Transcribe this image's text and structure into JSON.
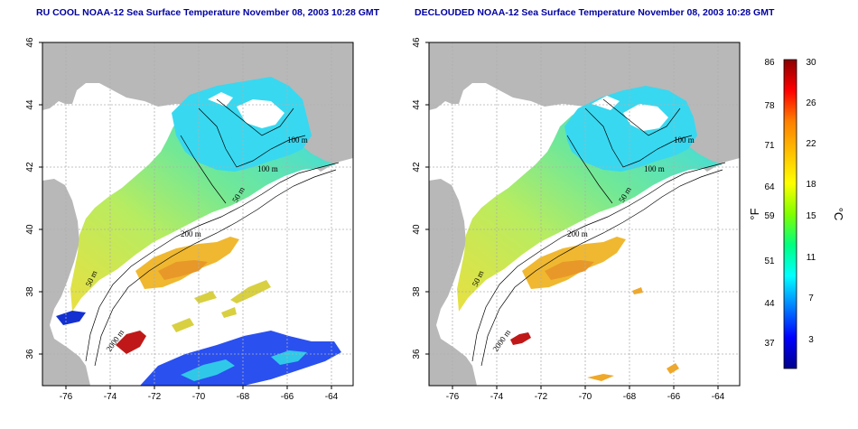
{
  "titles": {
    "left": "RU COOL NOAA-12 Sea Surface Temperature November 08, 2003 10:28 GMT",
    "right": "DECLOUDED NOAA-12 Sea Surface Temperature November 08, 2003 10:28 GMT"
  },
  "axes": {
    "lon_ticks": [
      "-76",
      "-74",
      "-72",
      "-70",
      "-68",
      "-66",
      "-64"
    ],
    "lat_ticks": [
      "46",
      "44",
      "42",
      "40",
      "38",
      "36"
    ],
    "lon_range": [
      -77,
      -63
    ],
    "lat_range": [
      35,
      46
    ]
  },
  "contour_labels": [
    "100 m",
    "100 m",
    "50 m",
    "200 m",
    "50 m",
    "2000 m"
  ],
  "colorbar": {
    "fahrenheit_label": "°F",
    "celsius_label": "°C",
    "fahrenheit_ticks": [
      "86",
      "78",
      "71",
      "64",
      "59",
      "51",
      "44",
      "37"
    ],
    "celsius_ticks": [
      "30",
      "26",
      "22",
      "18",
      "15",
      "11",
      "7",
      "3"
    ],
    "stops": [
      "#00008b",
      "#0000ff",
      "#0080ff",
      "#00ffff",
      "#00ff80",
      "#80ff00",
      "#ffff00",
      "#ffc000",
      "#ff8000",
      "#ff0000",
      "#8b0000"
    ]
  },
  "colors": {
    "land": "#b8b8b8",
    "grid": "#b0b0b0",
    "cold": "#1e3cff",
    "cool": "#35d0f0",
    "mid": "#80e880",
    "warm": "#d6e84a",
    "hot": "#f3b830"
  }
}
